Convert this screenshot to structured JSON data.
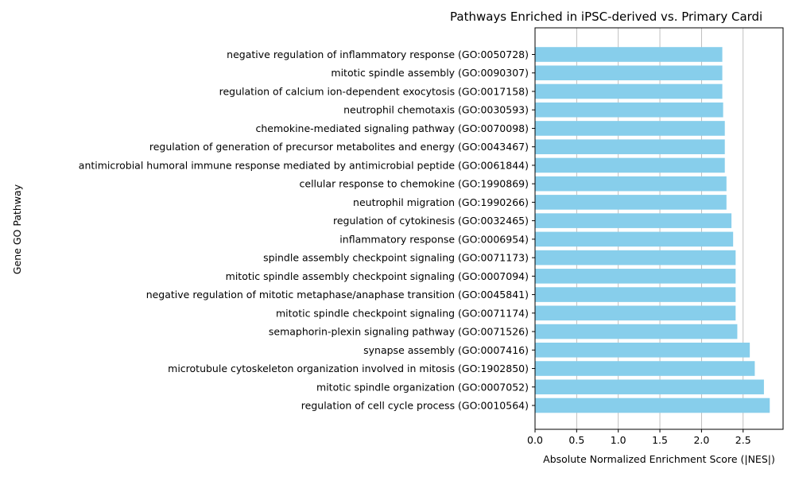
{
  "chart_data": {
    "type": "bar",
    "orientation": "horizontal",
    "title": "Pathways Enriched in iPSC-derived vs. Primary Cardi",
    "xlabel": "Absolute Normalized Enrichment Score (|NES|)",
    "ylabel": "Gene GO Pathway",
    "xlim": [
      0,
      2.98
    ],
    "xticks": [
      "0.0",
      "0.5",
      "1.0",
      "1.5",
      "2.0",
      "2.5"
    ],
    "xtick_values": [
      0,
      0.5,
      1.0,
      1.5,
      2.0,
      2.5
    ],
    "grid": "x",
    "bar_color": "#87CEEB",
    "categories": [
      "regulation of cell cycle process (GO:0010564)",
      "mitotic spindle organization (GO:0007052)",
      "microtubule cytoskeleton organization involved in mitosis (GO:1902850)",
      "synapse assembly (GO:0007416)",
      "semaphorin-plexin signaling pathway (GO:0071526)",
      "mitotic spindle checkpoint signaling (GO:0071174)",
      "negative regulation of mitotic metaphase/anaphase transition (GO:0045841)",
      "mitotic spindle assembly checkpoint signaling (GO:0007094)",
      "spindle assembly checkpoint signaling (GO:0071173)",
      "inflammatory response (GO:0006954)",
      "regulation of cytokinesis (GO:0032465)",
      "neutrophil migration (GO:1990266)",
      "cellular response to chemokine (GO:1990869)",
      "antimicrobial humoral immune response mediated by antimicrobial peptide (GO:0061844)",
      "regulation of generation of precursor metabolites and energy (GO:0043467)",
      "chemokine-mediated signaling pathway (GO:0070098)",
      "neutrophil chemotaxis (GO:0030593)",
      "regulation of calcium ion-dependent exocytosis (GO:0017158)",
      "mitotic spindle assembly (GO:0090307)",
      "negative regulation of inflammatory response (GO:0050728)"
    ],
    "values": [
      2.82,
      2.75,
      2.64,
      2.58,
      2.43,
      2.41,
      2.41,
      2.41,
      2.41,
      2.38,
      2.36,
      2.3,
      2.3,
      2.28,
      2.28,
      2.28,
      2.26,
      2.25,
      2.25,
      2.25
    ]
  }
}
